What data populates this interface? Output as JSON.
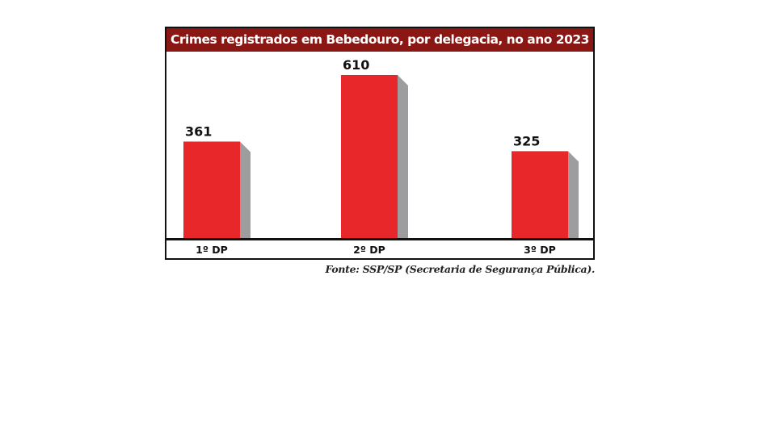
{
  "chart_data": {
    "type": "bar",
    "title": "Crimes registrados em Bebedouro, por delegacia, no ano 2023",
    "categories": [
      "1º DP",
      "2º DP",
      "3º DP"
    ],
    "values": [
      361,
      610,
      325
    ],
    "ylim": [
      0,
      610
    ],
    "grid": false,
    "colors": {
      "bar": "#e8272a",
      "shadow": "#9d9d9f",
      "title_bg": "#8b1714"
    }
  },
  "source": "Fonte: SSP/SP (Secretaria de Segurança Pública)."
}
